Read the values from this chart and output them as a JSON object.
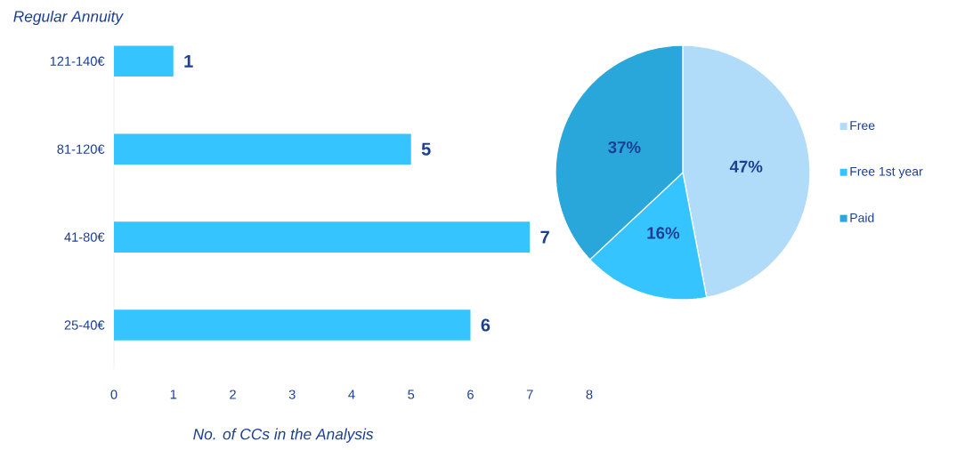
{
  "chart_data": [
    {
      "type": "bar",
      "orientation": "horizontal",
      "ylabel": "Regular Annuity",
      "xlabel": "No. of CCs in the Analysis",
      "categories": [
        "121-140€",
        "81-120€",
        "41-80€",
        "25-40€"
      ],
      "values": [
        1,
        5,
        7,
        6
      ],
      "value_labels": [
        "1",
        "5",
        "7",
        "6"
      ],
      "color": "#35c4fd",
      "xlim": [
        0,
        8
      ],
      "xticks": [
        0,
        1,
        2,
        3,
        4,
        5,
        6,
        7,
        8
      ]
    },
    {
      "type": "pie",
      "categories": [
        "Free",
        "Free 1st year",
        "Paid"
      ],
      "values": [
        47,
        16,
        37
      ],
      "value_labels": [
        "47%",
        "16%",
        "37%"
      ],
      "colors": [
        "#b1dcf9",
        "#35c4fd",
        "#29a6da"
      ],
      "legend": "right"
    }
  ]
}
